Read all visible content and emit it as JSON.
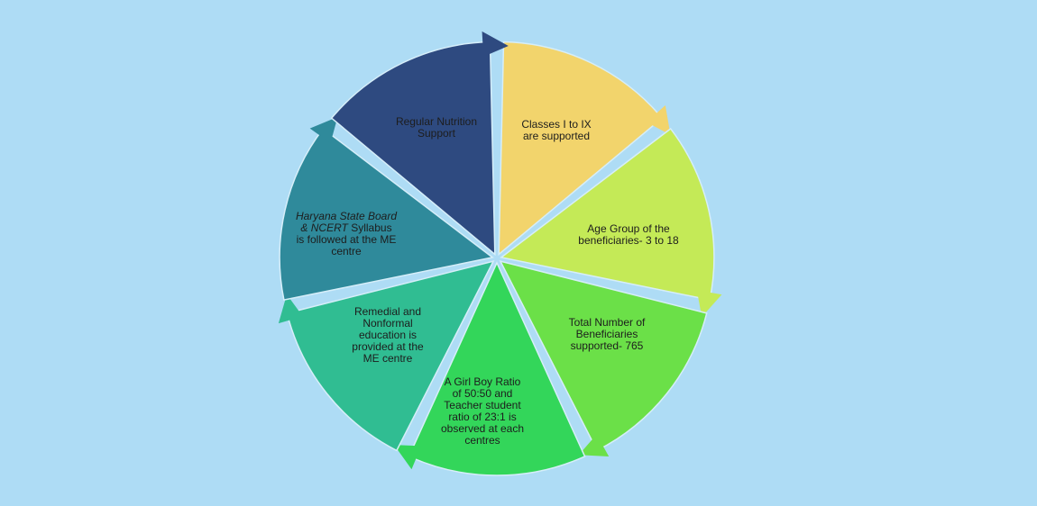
{
  "segments": [
    {
      "color": "#f2d46c",
      "lines": [
        [
          {
            "text": "Classes I to IX"
          }
        ],
        [
          {
            "text": "are supported"
          }
        ]
      ]
    },
    {
      "color": "#c4ea57",
      "lines": [
        [
          {
            "text": "Age Group of the"
          }
        ],
        [
          {
            "text": "beneficiaries- 3 to 18"
          }
        ]
      ]
    },
    {
      "color": "#6be048",
      "lines": [
        [
          {
            "text": "Total Number of"
          }
        ],
        [
          {
            "text": "Beneficiaries"
          }
        ],
        [
          {
            "text": "supported- 765"
          }
        ]
      ]
    },
    {
      "color": "#33d65a",
      "lines": [
        [
          {
            "text": "A Girl Boy Ratio"
          }
        ],
        [
          {
            "text": "of 50:50 and"
          }
        ],
        [
          {
            "text": "Teacher student"
          }
        ],
        [
          {
            "text": "ratio of 23:1 is"
          }
        ],
        [
          {
            "text": "observed at each"
          }
        ],
        [
          {
            "text": "centres"
          }
        ]
      ]
    },
    {
      "color": "#30bd92",
      "lines": [
        [
          {
            "text": "Remedial and"
          }
        ],
        [
          {
            "text": "Nonformal"
          }
        ],
        [
          {
            "text": "education is"
          }
        ],
        [
          {
            "text": "provided at the"
          }
        ],
        [
          {
            "text": "ME centre"
          }
        ]
      ]
    },
    {
      "color": "#2f8a9b",
      "lines": [
        [
          {
            "text": "Haryana State Board",
            "italic": true
          }
        ],
        [
          {
            "text": "& NCERT",
            "italic": true
          },
          {
            "text": " Syllabus"
          }
        ],
        [
          {
            "text": "is followed at the ME"
          }
        ],
        [
          {
            "text": "centre"
          }
        ]
      ]
    },
    {
      "color": "#2e4a80",
      "lines": [
        [
          {
            "text": "Regular Nutrition"
          }
        ],
        [
          {
            "text": "Support"
          }
        ]
      ]
    }
  ]
}
